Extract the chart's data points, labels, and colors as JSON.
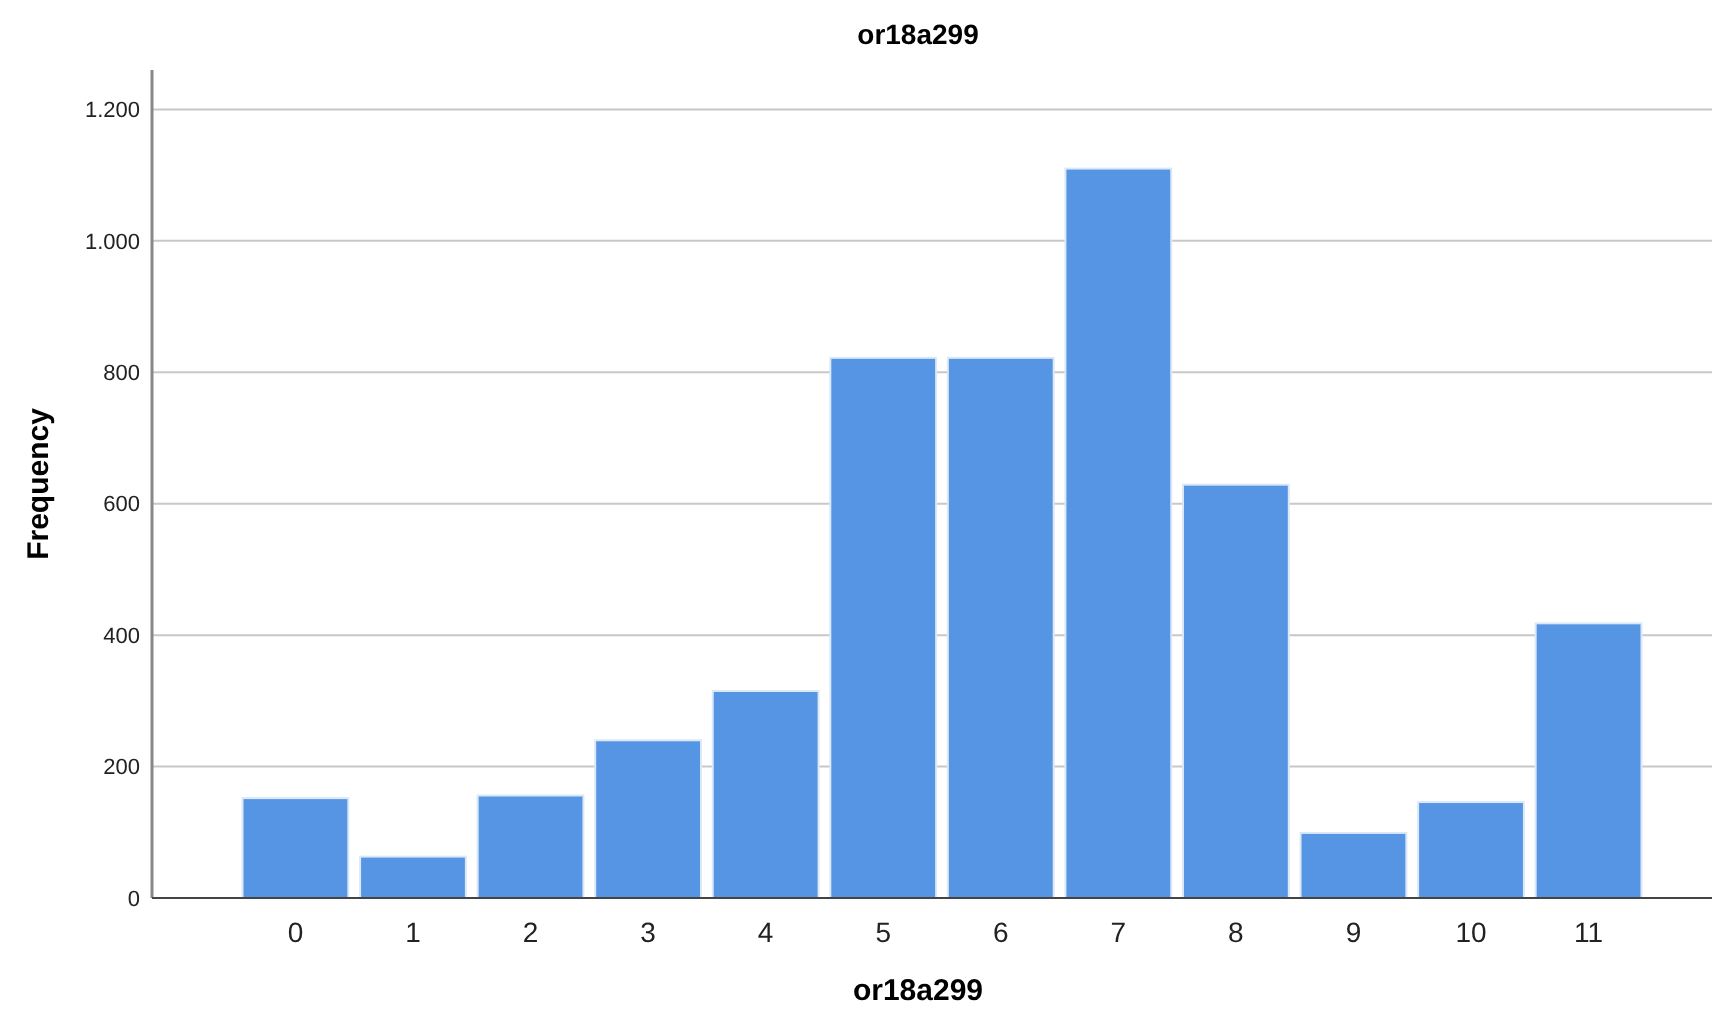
{
  "chart_data": {
    "type": "bar",
    "title": "or18a299",
    "xlabel": "or18a299",
    "ylabel": "Frequency",
    "categories": [
      "0",
      "1",
      "2",
      "3",
      "4",
      "5",
      "6",
      "7",
      "8",
      "9",
      "10",
      "11"
    ],
    "values": [
      152,
      63,
      156,
      240,
      315,
      822,
      822,
      1110,
      629,
      99,
      146,
      418
    ],
    "color": "#5595e3",
    "ylim": [
      0,
      1260
    ],
    "yticks": [
      0,
      200,
      400,
      600,
      800,
      {
        "value": 1000,
        "label": "1.000"
      },
      {
        "value": 1200,
        "label": "1.200"
      }
    ],
    "grid": "y"
  }
}
